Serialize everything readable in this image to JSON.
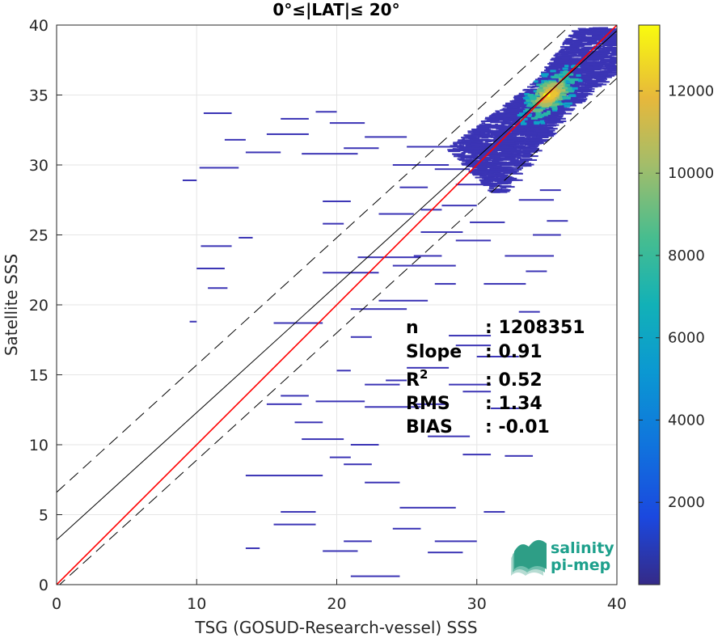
{
  "chart_data": {
    "type": "heatmap",
    "title": "0°≤|LAT|≤ 20°",
    "xlabel": "TSG (GOSUD-Research-vessel) SSS",
    "ylabel": "Satellite SSS",
    "xlim": [
      0,
      40
    ],
    "ylim": [
      0,
      40
    ],
    "xticks": [
      "0",
      "10",
      "20",
      "30",
      "40"
    ],
    "yticks": [
      "0",
      "5",
      "10",
      "15",
      "20",
      "25",
      "30",
      "35",
      "40"
    ],
    "grid": true,
    "colorbar": {
      "range": [
        0,
        13600
      ],
      "ticks": [
        "2000",
        "4000",
        "6000",
        "8000",
        "10000",
        "12000"
      ],
      "tick_values": [
        2000,
        4000,
        6000,
        8000,
        10000,
        12000
      ],
      "colormap": "parula"
    },
    "lines": [
      {
        "kind": "identity",
        "color": "#ff0000",
        "style": "solid",
        "intercept": 0,
        "slope": 1
      },
      {
        "kind": "regression",
        "color": "#000000",
        "style": "solid",
        "intercept": 3.2,
        "slope": 0.91
      },
      {
        "kind": "regression-plus-2rms",
        "color": "#000000",
        "style": "dashed",
        "intercept": 6.6,
        "slope": 0.91
      },
      {
        "kind": "regression-minus-2rms",
        "color": "#000000",
        "style": "dashed",
        "intercept": -0.2,
        "slope": 0.91
      }
    ],
    "density_core": {
      "x": 35,
      "y": 35,
      "peak_count": 13600
    },
    "stats": [
      {
        "label": "n",
        "value": ": 1208351"
      },
      {
        "label": "Slope",
        "value": ": 0.91"
      },
      {
        "label": "R",
        "sup": "2",
        "value": ": 0.52"
      },
      {
        "label": "RMS",
        "value": ": 1.34"
      },
      {
        "label": "BIAS",
        "value": ": -0.01"
      }
    ],
    "scatter_segments": [
      [
        19.5,
        33.0,
        22.0
      ],
      [
        22.0,
        32.0,
        25.0
      ],
      [
        10.2,
        29.8,
        13.0
      ],
      [
        9.0,
        28.9,
        10.0
      ],
      [
        10.3,
        24.2,
        12.5
      ],
      [
        10.0,
        22.6,
        12.0
      ],
      [
        10.8,
        21.2,
        12.2
      ],
      [
        9.5,
        18.8,
        10.0
      ],
      [
        17.5,
        30.8,
        21.5
      ],
      [
        16.0,
        33.3,
        18.0
      ],
      [
        19.0,
        27.4,
        21.0
      ],
      [
        19.0,
        25.8,
        20.5
      ],
      [
        21.5,
        23.4,
        26.0
      ],
      [
        24.0,
        22.8,
        28.5
      ],
      [
        27.0,
        21.5,
        28.5
      ],
      [
        21.0,
        19.7,
        25.0
      ],
      [
        23.0,
        20.3,
        26.5
      ],
      [
        15.5,
        18.7,
        19.0
      ],
      [
        21.0,
        17.7,
        22.5
      ],
      [
        28.0,
        17.8,
        31.0
      ],
      [
        30.0,
        16.3,
        33.0
      ],
      [
        20.0,
        15.3,
        21.0
      ],
      [
        22.0,
        14.3,
        24.5
      ],
      [
        16.0,
        13.5,
        18.0
      ],
      [
        18.5,
        13.1,
        22.0
      ],
      [
        15.0,
        12.9,
        17.5
      ],
      [
        22.0,
        12.7,
        26.0
      ],
      [
        25.5,
        12.9,
        28.0
      ],
      [
        17.0,
        11.6,
        19.0
      ],
      [
        26.5,
        10.6,
        29.5
      ],
      [
        17.5,
        10.4,
        20.5
      ],
      [
        21.0,
        10.0,
        23.0
      ],
      [
        19.5,
        9.1,
        21.0
      ],
      [
        29.0,
        9.3,
        31.0
      ],
      [
        20.5,
        8.6,
        22.5
      ],
      [
        13.5,
        7.8,
        19.0
      ],
      [
        22.0,
        7.3,
        24.5
      ],
      [
        24.5,
        5.5,
        28.5
      ],
      [
        30.5,
        5.2,
        32.0
      ],
      [
        16.0,
        5.2,
        18.5
      ],
      [
        15.5,
        4.3,
        18.5
      ],
      [
        24.0,
        4.0,
        26.0
      ],
      [
        20.5,
        3.1,
        22.5
      ],
      [
        27.0,
        3.1,
        30.0
      ],
      [
        13.5,
        2.6,
        14.5
      ],
      [
        19.0,
        2.4,
        21.5
      ],
      [
        26.5,
        2.3,
        29.0
      ],
      [
        21.0,
        0.6,
        24.5
      ],
      [
        33.0,
        27.5,
        35.5
      ],
      [
        34.0,
        25.0,
        36.0
      ],
      [
        35.0,
        26.0,
        36.5
      ],
      [
        34.5,
        28.2,
        36.0
      ],
      [
        32.0,
        23.5,
        35.5
      ],
      [
        33.5,
        22.4,
        35.0
      ],
      [
        30.5,
        21.5,
        33.5
      ],
      [
        33.0,
        19.5,
        34.5
      ],
      [
        30.5,
        30.1,
        33.0
      ],
      [
        24.0,
        30.0,
        28.0
      ],
      [
        27.0,
        29.7,
        29.5
      ],
      [
        28.5,
        28.6,
        31.0
      ],
      [
        25.0,
        31.3,
        28.5
      ],
      [
        26.0,
        25.2,
        29.0
      ],
      [
        28.5,
        24.6,
        31.0
      ],
      [
        23.0,
        26.5,
        25.5
      ],
      [
        26.0,
        26.8,
        27.5
      ],
      [
        13.0,
        24.8,
        14.0
      ],
      [
        25.5,
        23.5,
        27.5
      ],
      [
        19.0,
        22.3,
        23.0
      ],
      [
        25.0,
        15.5,
        28.0
      ],
      [
        28.0,
        14.3,
        31.0
      ],
      [
        31.0,
        12.6,
        33.0
      ],
      [
        23.5,
        14.6,
        25.0
      ],
      [
        28.5,
        17.1,
        31.0
      ],
      [
        29.0,
        13.8,
        31.0
      ],
      [
        32.0,
        9.2,
        34.0
      ],
      [
        29.5,
        25.9,
        32.0
      ],
      [
        24.5,
        28.4,
        26.5
      ],
      [
        27.5,
        27.1,
        30.0
      ],
      [
        13.5,
        30.9,
        16.0
      ],
      [
        15.0,
        32.2,
        18.0
      ],
      [
        18.5,
        33.8,
        20.0
      ],
      [
        10.5,
        33.7,
        12.5
      ],
      [
        12.0,
        31.8,
        13.5
      ],
      [
        20.5,
        31.2,
        23.0
      ]
    ]
  },
  "logo": {
    "line1": "salinity",
    "line2": "pi-mep"
  }
}
